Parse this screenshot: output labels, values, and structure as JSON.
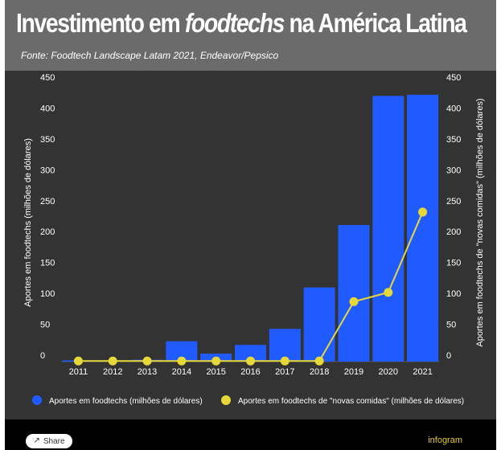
{
  "header": {
    "title_pre": "Investimento em ",
    "title_em": "foodtechs",
    "title_post": " na América Latina",
    "subtitle": "Fonte: Foodtech Landscape Latam 2021, Endeavor/Pepsico"
  },
  "footer": {
    "share_label": "Share",
    "brand": "infogram"
  },
  "colors": {
    "bar": "#1f5bff",
    "line": "#e7d83a",
    "text": "#ffffff",
    "frame": "#333333"
  },
  "chart_data": {
    "type": "bar+line",
    "categories": [
      "2011",
      "2012",
      "2013",
      "2014",
      "2015",
      "2016",
      "2017",
      "2018",
      "2019",
      "2020",
      "2021"
    ],
    "series": [
      {
        "name": "Aportes em foodtechs (milhões de dólares)",
        "type": "bar",
        "axis": "left",
        "values": [
          2,
          2,
          3,
          33,
          13,
          27,
          53,
          120,
          221,
          430,
          432
        ]
      },
      {
        "name": "Aportes em foodtechs de \"novas comidas\" (milhões de dólares)",
        "type": "line",
        "axis": "right",
        "values": [
          1,
          1,
          1,
          1,
          1,
          1,
          1,
          1,
          97,
          112,
          242
        ]
      }
    ],
    "ylabel_left": "Aportes em foodtechs (milhões de dólares)",
    "ylabel_right": "Aportes em foodtechs de \"novas comidas\" (milhões de dólares)",
    "ylim": [
      0,
      450
    ],
    "yticks": [
      0,
      50,
      100,
      150,
      200,
      250,
      300,
      350,
      400,
      450
    ],
    "legend_position": "bottom"
  }
}
